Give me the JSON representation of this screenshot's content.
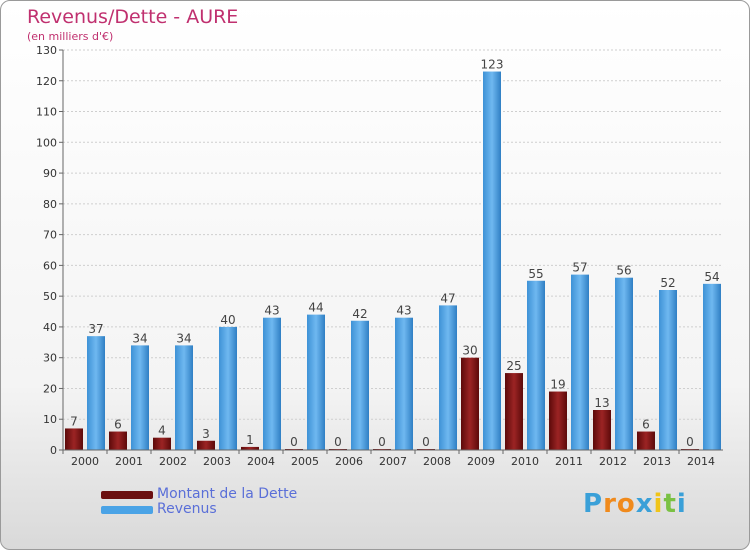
{
  "header": {
    "title": "Revenus/Dette - AURE",
    "subtitle": "(en milliers d'€)"
  },
  "chart_data": {
    "type": "bar",
    "title": "Revenus/Dette - AURE",
    "ylabel": "(en milliers d'€)",
    "xlabel": "",
    "ylim": [
      0,
      130
    ],
    "ytick_step": 10,
    "grid": true,
    "legend_position": "bottom-left",
    "categories": [
      "2000",
      "2001",
      "2002",
      "2003",
      "2004",
      "2005",
      "2006",
      "2007",
      "2008",
      "2009",
      "2010",
      "2011",
      "2012",
      "2013",
      "2014"
    ],
    "series": [
      {
        "name": "Montant de la Dette",
        "color": "#8b1a1a",
        "values": [
          7,
          6,
          4,
          3,
          1,
          0,
          0,
          0,
          0,
          30,
          25,
          19,
          13,
          6,
          0
        ]
      },
      {
        "name": "Revenus",
        "color": "#4aa3e6",
        "values": [
          37,
          34,
          34,
          40,
          43,
          44,
          42,
          43,
          47,
          123,
          55,
          57,
          56,
          52,
          54
        ]
      }
    ]
  },
  "legend": {
    "items": [
      {
        "label": "Montant de la Dette",
        "color": "#6b0f0f"
      },
      {
        "label": "Revenus",
        "color": "#4aa3e6"
      }
    ]
  },
  "logo": {
    "letters": [
      "P",
      "r",
      "o",
      "x",
      "i",
      "t",
      "i"
    ],
    "colors": [
      "#3aa0d8",
      "#f08a1c",
      "#f08a1c",
      "#3aa0d8",
      "#f0c419",
      "#7ac143",
      "#3aa0d8"
    ]
  }
}
